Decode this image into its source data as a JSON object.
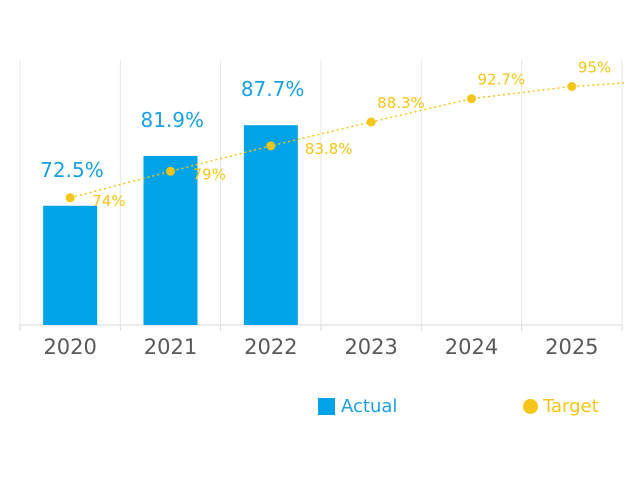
{
  "chart_data": {
    "type": "bar",
    "categories": [
      "2020",
      "2021",
      "2022",
      "2023",
      "2024",
      "2025"
    ],
    "series": [
      {
        "name": "Actual",
        "type": "bar",
        "values": [
          72.5,
          81.9,
          87.7,
          null,
          null,
          null
        ],
        "labels": [
          "72.5%",
          "81.9%",
          "87.7%",
          "",
          "",
          ""
        ],
        "color": "#00a2e8"
      },
      {
        "name": "Target",
        "type": "line",
        "style": "dotted",
        "values": [
          74,
          79,
          83.8,
          88.3,
          92.7,
          95
        ],
        "labels": [
          "74%",
          "79%",
          "83.8%",
          "88.3%",
          "92.7%",
          "95%"
        ],
        "color": "#f5c518"
      }
    ],
    "ylim": [
      50,
      100
    ],
    "grid": "vertical",
    "legend_position": "bottom"
  }
}
